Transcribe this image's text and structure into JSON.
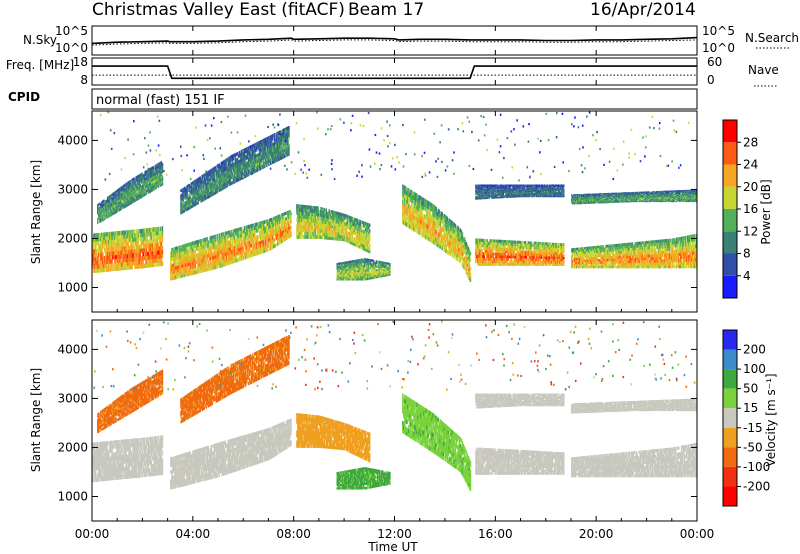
{
  "header": {
    "title": "Christmas Valley East (fitACF)",
    "beam": "Beam 17",
    "date": "16/Apr/2014"
  },
  "cpid_label": "CPID",
  "cpid_text": "normal (fast) 151 IF",
  "colors": {
    "ground_scatter": "#c8c8bf",
    "trace": "#000000"
  },
  "chart_data": [
    {
      "type": "line",
      "panel": "noise",
      "left_label": "N.Sky",
      "right_label": "N.Search",
      "left_ticks": [
        "10^5",
        "10^0"
      ],
      "right_ticks": [
        "10^5",
        "10^0"
      ],
      "x": [
        "00:00",
        "01:00",
        "02:00",
        "03:00",
        "03:05",
        "04:00",
        "05:00",
        "06:00",
        "07:00",
        "07:55",
        "08:00",
        "09:00",
        "10:00",
        "11:00",
        "12:00",
        "12:10",
        "13:00",
        "14:00",
        "15:00",
        "15:05",
        "16:00",
        "17:00",
        "18:00",
        "18:50",
        "19:00",
        "20:00",
        "21:00",
        "22:00",
        "23:00",
        "24:00"
      ],
      "series": [
        {
          "name": "N.Sky",
          "values": [
            2.0,
            2.2,
            2.3,
            2.4,
            2.3,
            2.3,
            2.4,
            2.6,
            2.7,
            2.9,
            2.7,
            2.8,
            2.9,
            2.9,
            2.8,
            2.6,
            2.7,
            2.7,
            2.6,
            2.6,
            2.6,
            2.6,
            2.5,
            2.5,
            2.5,
            2.6,
            2.6,
            2.7,
            2.8,
            3.0
          ]
        },
        {
          "name": "N.Search",
          "values": [
            1.7,
            1.9,
            2.0,
            2.1,
            2.0,
            2.0,
            2.1,
            2.3,
            2.4,
            2.6,
            2.4,
            2.5,
            2.6,
            2.6,
            2.5,
            2.3,
            2.4,
            2.4,
            2.3,
            2.3,
            2.3,
            2.3,
            2.2,
            2.2,
            2.2,
            2.3,
            2.3,
            2.4,
            2.5,
            2.6
          ]
        }
      ],
      "ylim": [
        0,
        5
      ]
    },
    {
      "type": "line",
      "panel": "frequency",
      "left_label": "Freq. [MHz]",
      "right_label": "Nave",
      "left_ticks": [
        "18",
        "8"
      ],
      "right_ticks": [
        "60",
        "0"
      ],
      "x": [
        "00:00",
        "03:00",
        "03:10",
        "15:00",
        "15:10",
        "24:00"
      ],
      "series": [
        {
          "name": "Freq.",
          "values": [
            15.0,
            15.0,
            10.5,
            10.5,
            15.0,
            15.0
          ]
        },
        {
          "name": "Nave",
          "values": [
            22,
            22,
            22,
            22,
            22,
            22
          ]
        }
      ],
      "ylim": [
        8,
        18
      ],
      "y2lim": [
        0,
        60
      ]
    },
    {
      "type": "heatmap",
      "panel": "power",
      "ylabel": "Slant Range [km]",
      "yticks": [
        "1000",
        "2000",
        "3000",
        "4000"
      ],
      "ylim": [
        500,
        4600
      ],
      "colorbar_label": "Power [dB]",
      "colorbar_ticks": [
        "4",
        "8",
        "12",
        "16",
        "20",
        "24",
        "28"
      ],
      "colorbar_colors": [
        "#1a1aff",
        "#2f4fa8",
        "#3c7f79",
        "#52b05a",
        "#c8d633",
        "#f5a623",
        "#ff5a14",
        "#ff0000"
      ],
      "bands": [
        {
          "t": [
            0,
            1,
            2,
            2.8
          ],
          "low": [
            1300,
            1350,
            1400,
            1450
          ],
          "high": [
            2100,
            2150,
            2200,
            2250
          ],
          "level": 26
        },
        {
          "t": [
            3.1,
            5,
            7,
            7.9
          ],
          "low": [
            1150,
            1400,
            1750,
            2050
          ],
          "high": [
            1800,
            2100,
            2400,
            2600
          ],
          "level": 24
        },
        {
          "t": [
            8.1,
            9,
            10,
            11
          ],
          "low": [
            2000,
            2000,
            1950,
            1700
          ],
          "high": [
            2700,
            2650,
            2500,
            2300
          ],
          "level": 20
        },
        {
          "t": [
            9.7,
            10.8,
            11.8
          ],
          "low": [
            1150,
            1150,
            1250
          ],
          "high": [
            1500,
            1600,
            1500
          ],
          "level": 18
        },
        {
          "t": [
            12.3,
            13.5,
            14.6,
            15
          ],
          "low": [
            2300,
            1900,
            1500,
            1100
          ],
          "high": [
            3100,
            2700,
            2200,
            1700
          ],
          "level": 22
        },
        {
          "t": [
            15.2,
            17,
            18.7
          ],
          "low": [
            1450,
            1450,
            1450
          ],
          "high": [
            2000,
            1950,
            1900
          ],
          "level": 26
        },
        {
          "t": [
            15.2,
            17,
            18.7
          ],
          "low": [
            2800,
            2850,
            2850
          ],
          "high": [
            3100,
            3100,
            3100
          ],
          "level": 10
        },
        {
          "t": [
            19,
            21,
            23,
            24
          ],
          "low": [
            1400,
            1400,
            1400,
            1400
          ],
          "high": [
            1800,
            1900,
            2000,
            2100
          ],
          "level": 24
        },
        {
          "t": [
            19,
            21.5,
            24
          ],
          "low": [
            2700,
            2750,
            2750
          ],
          "high": [
            2900,
            2950,
            3000
          ],
          "level": 14
        },
        {
          "t": [
            0.2,
            1.5,
            2.8
          ],
          "low": [
            2300,
            2700,
            3100
          ],
          "high": [
            2700,
            3200,
            3600
          ],
          "level": 14
        },
        {
          "t": [
            3.5,
            5.5,
            7.8
          ],
          "low": [
            2500,
            3100,
            3700
          ],
          "high": [
            3000,
            3700,
            4300
          ],
          "level": 12
        }
      ]
    },
    {
      "type": "heatmap",
      "panel": "velocity",
      "ylabel": "Slant Range [km]",
      "yticks": [
        "1000",
        "2000",
        "3000",
        "4000"
      ],
      "ylim": [
        500,
        4600
      ],
      "colorbar_label": "Velocity [m s⁻¹]",
      "colorbar_ticks": [
        "200",
        "100",
        "50",
        "15",
        "-15",
        "-50",
        "-100",
        "-200"
      ],
      "colorbar_colors": [
        "#2a2aee",
        "#3b8acb",
        "#3fa83f",
        "#7bd33b",
        "#c8c8bf",
        "#f0a020",
        "#f06a10",
        "#f03010",
        "#ff0000"
      ],
      "bands": [
        {
          "t": [
            0,
            1,
            2,
            2.8
          ],
          "low": [
            1300,
            1350,
            1400,
            1450
          ],
          "high": [
            2100,
            2150,
            2200,
            2250
          ],
          "level": 0
        },
        {
          "t": [
            3.1,
            5,
            7,
            7.9
          ],
          "low": [
            1150,
            1400,
            1750,
            2050
          ],
          "high": [
            1800,
            2100,
            2400,
            2600
          ],
          "level": 0
        },
        {
          "t": [
            8.1,
            9,
            10,
            11
          ],
          "low": [
            2000,
            2000,
            1950,
            1700
          ],
          "high": [
            2700,
            2650,
            2500,
            2300
          ],
          "level": -30
        },
        {
          "t": [
            9.7,
            10.8,
            11.8
          ],
          "low": [
            1150,
            1150,
            1250
          ],
          "high": [
            1500,
            1600,
            1500
          ],
          "level": 60
        },
        {
          "t": [
            12.3,
            13.5,
            14.6,
            15
          ],
          "low": [
            2300,
            1900,
            1500,
            1100
          ],
          "high": [
            3100,
            2700,
            2200,
            1700
          ],
          "level": 40
        },
        {
          "t": [
            15.2,
            17,
            18.7
          ],
          "low": [
            1450,
            1450,
            1450
          ],
          "high": [
            2000,
            1950,
            1900
          ],
          "level": 0
        },
        {
          "t": [
            15.2,
            17,
            18.7
          ],
          "low": [
            2800,
            2850,
            2850
          ],
          "high": [
            3100,
            3100,
            3100
          ],
          "level": 0
        },
        {
          "t": [
            19,
            21,
            23,
            24
          ],
          "low": [
            1400,
            1400,
            1400,
            1400
          ],
          "high": [
            1800,
            1900,
            2000,
            2100
          ],
          "level": 0
        },
        {
          "t": [
            19,
            21.5,
            24
          ],
          "low": [
            2700,
            2750,
            2750
          ],
          "high": [
            2900,
            2950,
            3000
          ],
          "level": 0
        },
        {
          "t": [
            0.2,
            1.5,
            2.8
          ],
          "low": [
            2300,
            2700,
            3100
          ],
          "high": [
            2700,
            3200,
            3600
          ],
          "level": -60
        },
        {
          "t": [
            3.5,
            5.5,
            7.8
          ],
          "low": [
            2500,
            3100,
            3700
          ],
          "high": [
            3000,
            3700,
            4300
          ],
          "level": -60
        }
      ]
    }
  ],
  "time_axis": {
    "ticks": [
      "00:00",
      "04:00",
      "08:00",
      "12:00",
      "16:00",
      "20:00",
      "00:00"
    ],
    "label": "Time UT"
  }
}
